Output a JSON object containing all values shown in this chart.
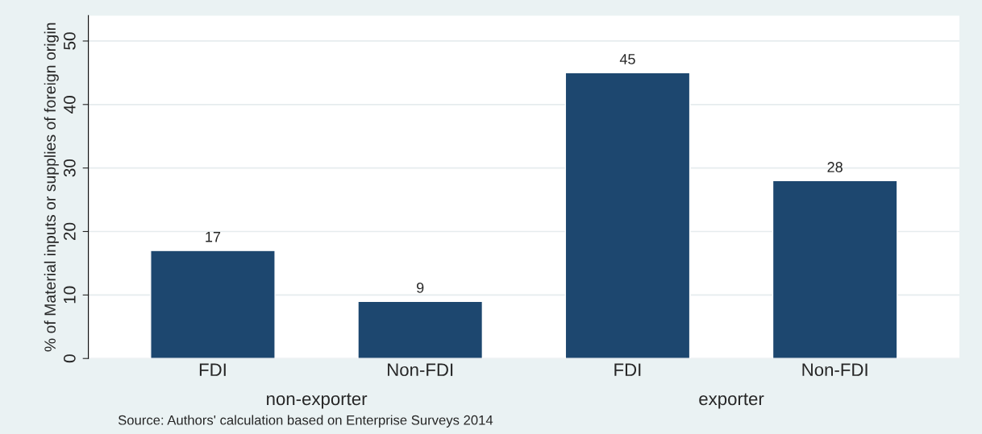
{
  "chart_data": {
    "type": "bar",
    "ylabel": "% of Material inputs or supplies of foreign origin",
    "categories": [
      "FDI",
      "Non-FDI",
      "FDI",
      "Non-FDI"
    ],
    "values": [
      17,
      9,
      45,
      28
    ],
    "color": "#1d476f",
    "ylim": [
      0,
      54
    ],
    "yticks": [
      0,
      10,
      20,
      30,
      40,
      50
    ],
    "grid": "y",
    "data_labels": true,
    "annotations": [
      "non-exporter",
      "exporter",
      "Source: Authors' calculation based on Enterprise Surveys 2014"
    ]
  }
}
